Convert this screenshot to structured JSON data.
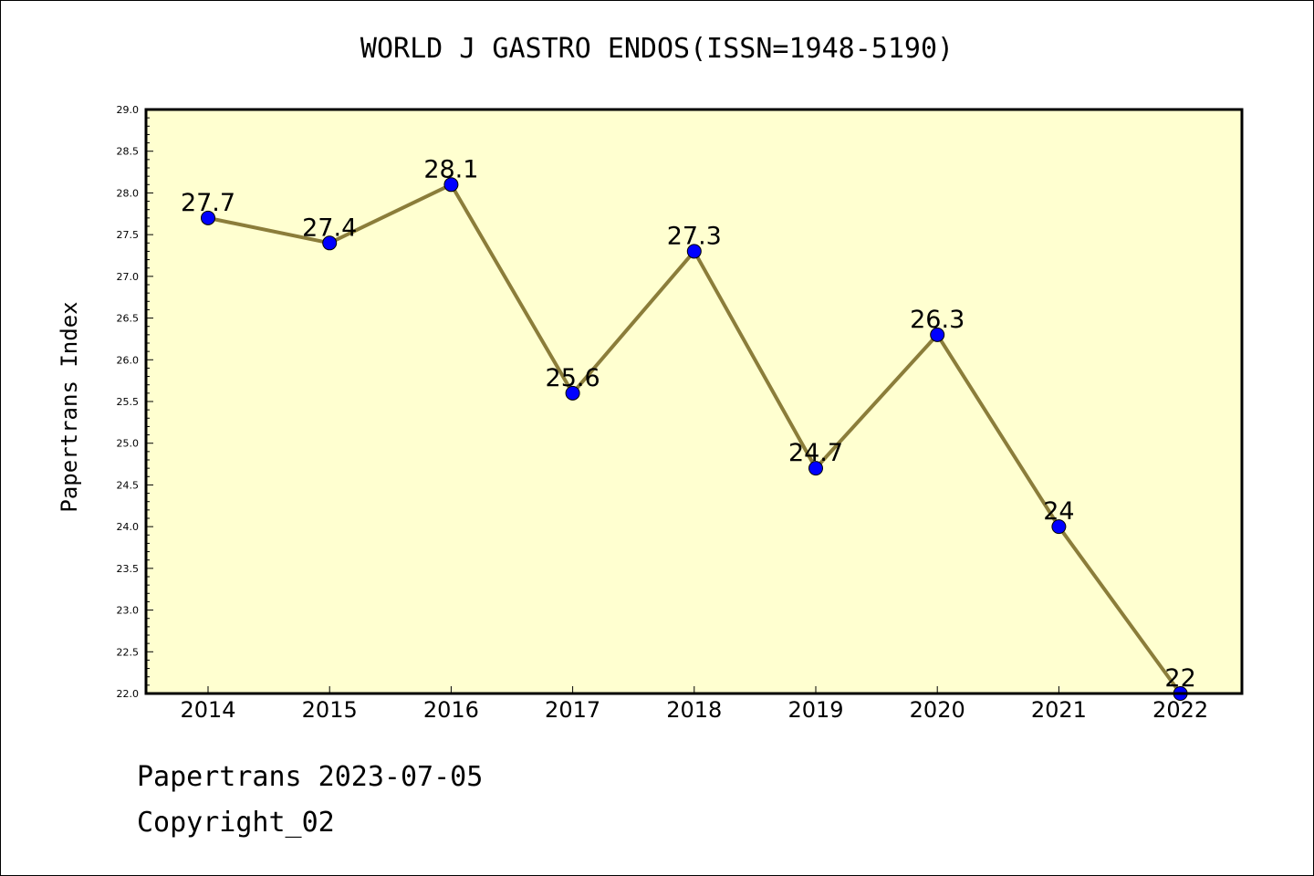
{
  "chart_data": {
    "type": "line",
    "title": "WORLD J GASTRO ENDOS(ISSN=1948-5190)",
    "xlabel": "",
    "ylabel": "Papertrans Index",
    "categories": [
      "2014",
      "2015",
      "2016",
      "2017",
      "2018",
      "2019",
      "2020",
      "2021",
      "2022"
    ],
    "series": [
      {
        "values": [
          27.7,
          27.4,
          28.1,
          25.6,
          27.3,
          24.7,
          26.3,
          24,
          22
        ],
        "data_labels": [
          "27.7",
          "27.4",
          "28.1",
          "25.6",
          "27.3",
          "24.7",
          "26.3",
          "24",
          "22"
        ]
      }
    ],
    "ylim": [
      22.0,
      29.0
    ],
    "yticks": [
      "22.0",
      "22.5",
      "23.0",
      "23.5",
      "24.0",
      "24.5",
      "25.0",
      "25.5",
      "26.0",
      "26.5",
      "27.0",
      "27.5",
      "28.0",
      "28.5",
      "29.0"
    ],
    "grid": false,
    "legend": "none",
    "colors": {
      "plot_background": "#ffffd0",
      "line": "#8b7d3a",
      "marker": "#0000ff"
    }
  },
  "footer": {
    "line1": "Papertrans 2023-07-05",
    "line2": "Copyright_02"
  }
}
